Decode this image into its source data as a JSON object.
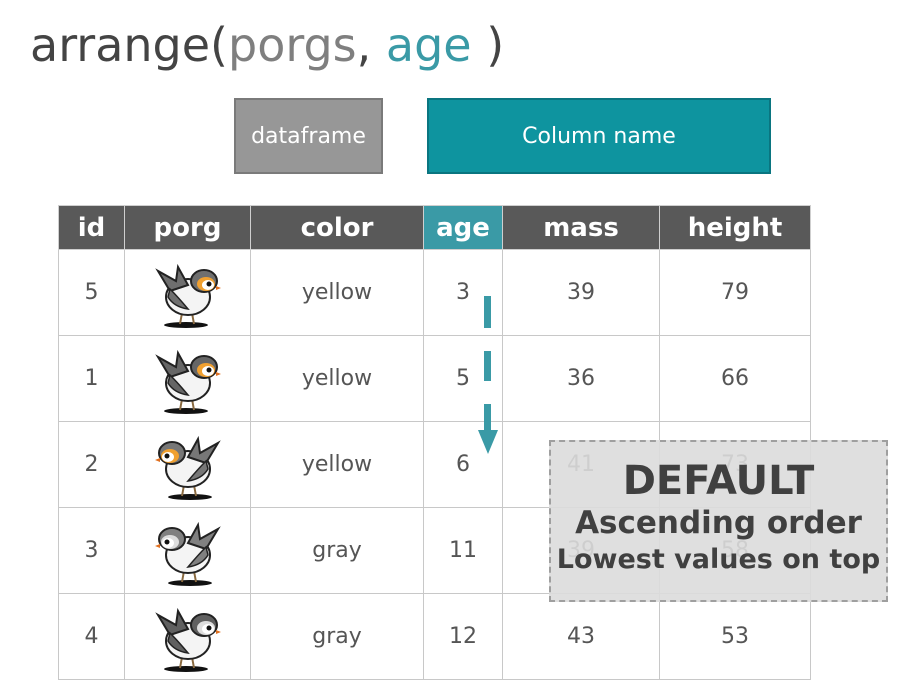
{
  "title": {
    "fn": "arrange(",
    "df": "porgs",
    "comma": ",",
    "col": "age",
    "close": " )"
  },
  "labels": {
    "dataframe": "dataframe",
    "column_name": "Column name"
  },
  "table": {
    "headers": [
      "id",
      "porg",
      "color",
      "age",
      "mass",
      "height"
    ],
    "highlight_column": "age",
    "rows": [
      {
        "id": "5",
        "color": "yellow",
        "age": "3",
        "mass": "39",
        "height": "79"
      },
      {
        "id": "1",
        "color": "yellow",
        "age": "5",
        "mass": "36",
        "height": "66"
      },
      {
        "id": "2",
        "color": "yellow",
        "age": "6",
        "mass": "41",
        "height": "73"
      },
      {
        "id": "3",
        "color": "gray",
        "age": "11",
        "mass": "39",
        "height": "58"
      },
      {
        "id": "4",
        "color": "gray",
        "age": "12",
        "mass": "43",
        "height": "53"
      }
    ]
  },
  "callout": {
    "line1": "DEFAULT",
    "line2": "Ascending order",
    "line3": "Lowest values on top"
  },
  "colors": {
    "teal": "#3a9aa6",
    "box_teal": "#0e949f",
    "header_gray": "#595959",
    "box_gray": "#979797"
  }
}
